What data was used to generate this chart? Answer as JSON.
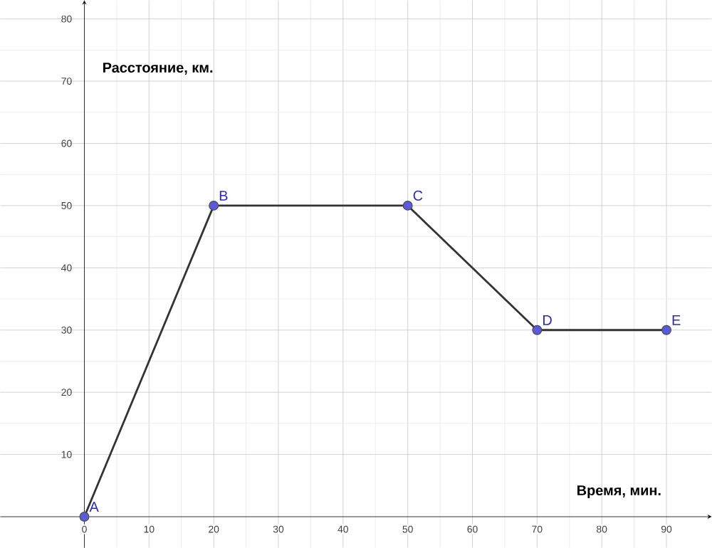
{
  "chart_data": {
    "type": "line",
    "xlabel": "Время, мин.",
    "ylabel": "Расстояние, км.",
    "x": [
      0,
      20,
      50,
      70,
      90
    ],
    "series": [
      {
        "color": "#333333",
        "values": [
          0,
          50,
          50,
          30,
          30
        ]
      }
    ],
    "marker": "circle",
    "line_style": "solid",
    "grid": true,
    "xlim": [
      -13,
      97
    ],
    "ylim": [
      -5,
      83
    ],
    "xticks": [
      0,
      10,
      20,
      30,
      40,
      50,
      60,
      70,
      80,
      90
    ],
    "yticks": [
      10,
      20,
      30,
      40,
      50,
      60,
      70,
      80
    ],
    "annotations": [
      {
        "text": "A",
        "x": 0,
        "y": 0
      },
      {
        "text": "B",
        "x": 20,
        "y": 50
      },
      {
        "text": "C",
        "x": 50,
        "y": 50
      },
      {
        "text": "D",
        "x": 70,
        "y": 30
      },
      {
        "text": "E",
        "x": 90,
        "y": 30
      }
    ]
  }
}
